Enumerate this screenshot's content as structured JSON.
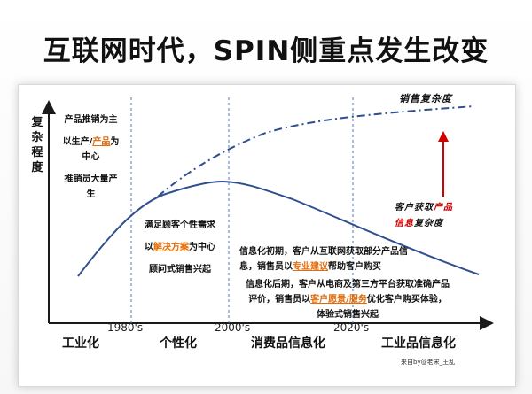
{
  "title": "互联网时代，SPIN侧重点发生改变",
  "y_axis_label": "复杂程度",
  "curves": {
    "dashed_label": "销售复杂度",
    "arrow_label_parts": [
      "客户获取",
      "产品",
      "信息",
      "复杂度"
    ]
  },
  "era1": {
    "line1": "产品推销为主",
    "line2_a": "以生产/",
    "line2_b": "产品",
    "line2_c": "为",
    "line3": "中心",
    "line4": "推销员大量产",
    "line5": "生"
  },
  "era2": {
    "line1": "满足顾客个性需求",
    "line2_a": "以",
    "line2_b": "解决方案",
    "line2_c": "为中心",
    "line3": "顾问式销售兴起"
  },
  "era3": {
    "p1_a": "信息化初期，客户从互联网获取部分产品信",
    "p1_b_a": "息，销售员以",
    "p1_b_b": "专业建议",
    "p1_b_c": "帮助客户购买",
    "p2_a": "信息化后期，客户从电商及第三方平台获取准确产品",
    "p2_b_a": "评价，销售员以",
    "p2_b_b": "客户愿景/服务",
    "p2_b_c": "优化客户购买体验，",
    "p2_c": "体验式销售兴起"
  },
  "years": [
    "1980's",
    "2000's",
    "2020's"
  ],
  "eras": [
    "工业化",
    "个性化",
    "消费品信息化",
    "工业品信息化"
  ],
  "credit": "来自by@老宋_王乱",
  "colors": {
    "curve_solid": "#2f4f8f",
    "curve_dash": "#2f4f8f",
    "arrow": "#d00000",
    "divider": "#5577bb",
    "accent": "#e36c0a"
  }
}
